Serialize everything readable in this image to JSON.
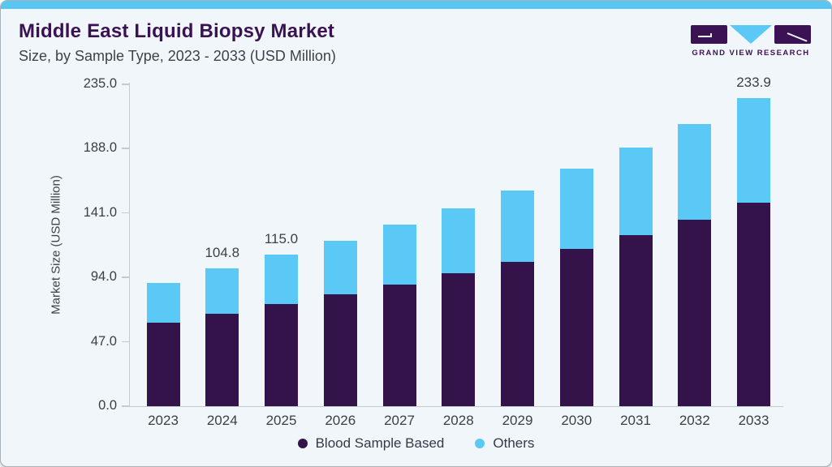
{
  "header": {
    "title": "Middle East Liquid Biopsy Market",
    "subtitle": "Size, by Sample Type, 2023 - 2033 (USD Million)"
  },
  "logo": {
    "text": "GRAND VIEW RESEARCH"
  },
  "colors": {
    "accent_bar": "#57C7F2",
    "card_background": "#F1F6FA",
    "title_text": "#3A1254",
    "body_text": "#3A4048",
    "blood_sample_based": "#34134B",
    "others": "#5BC9F5",
    "axis_line": "#C3CBD1",
    "logo_purple": "#3B1254"
  },
  "chart_data": {
    "type": "bar",
    "stacked": true,
    "title": "Middle East Liquid Biopsy Market Size, by Sample Type, 2023 - 2033 (USD Million)",
    "xlabel": "",
    "ylabel": "Market Size (USD Million)",
    "ylim": [
      0,
      235
    ],
    "yticks": [
      0.0,
      47.0,
      94.0,
      141.0,
      188.0,
      235.0
    ],
    "ytick_labels": [
      "0.0",
      "47.0",
      "94.0",
      "141.0",
      "188.0",
      "235.0"
    ],
    "grid": false,
    "legend_position": "bottom",
    "categories": [
      "2023",
      "2024",
      "2025",
      "2026",
      "2027",
      "2028",
      "2029",
      "2030",
      "2031",
      "2032",
      "2033"
    ],
    "series": [
      {
        "name": "Blood Sample Based",
        "color": "#34134B",
        "values": [
          63.7,
          70.5,
          77.9,
          85.1,
          92.5,
          100.7,
          109.7,
          119.4,
          129.8,
          141.5,
          154.5
        ]
      },
      {
        "name": "Others",
        "color": "#5BC9F5",
        "values": [
          29.8,
          34.3,
          37.1,
          40.7,
          45.6,
          49.7,
          54.4,
          60.8,
          66.8,
          72.7,
          79.4
        ]
      }
    ],
    "totals": [
      93.5,
      104.8,
      115.0,
      125.8,
      138.1,
      150.4,
      164.1,
      180.2,
      196.6,
      214.2,
      233.9
    ],
    "visible_bar_labels": {
      "2024": "104.8",
      "2025": "115.0",
      "2033": "233.9"
    }
  },
  "legend": {
    "items": [
      {
        "label": "Blood Sample Based",
        "color": "#34134B"
      },
      {
        "label": "Others",
        "color": "#5BC9F5"
      }
    ]
  }
}
